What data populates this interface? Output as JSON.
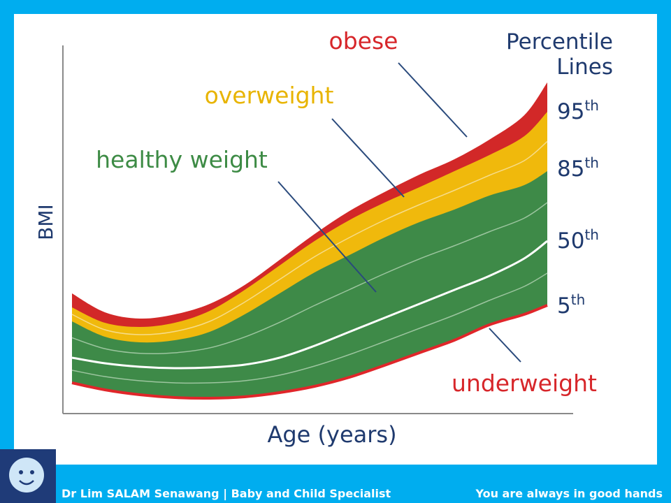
{
  "chart": {
    "y_axis_label": "BMI",
    "x_axis_label": "Age (years)",
    "legend_title": [
      "Percentile",
      "Lines"
    ],
    "zones": {
      "obese": "obese",
      "overweight": "overweight",
      "healthy": "healthy weight",
      "underweight": "underweight"
    },
    "percentiles": [
      {
        "number": "95",
        "suffix": "th"
      },
      {
        "number": "85",
        "suffix": "th"
      },
      {
        "number": "50",
        "suffix": "th"
      },
      {
        "number": "5",
        "suffix": "th"
      }
    ]
  },
  "footer": {
    "left": "Dr Lim SALAM Senawang | Baby and Child Specialist",
    "right": "You are always in good hands"
  }
}
